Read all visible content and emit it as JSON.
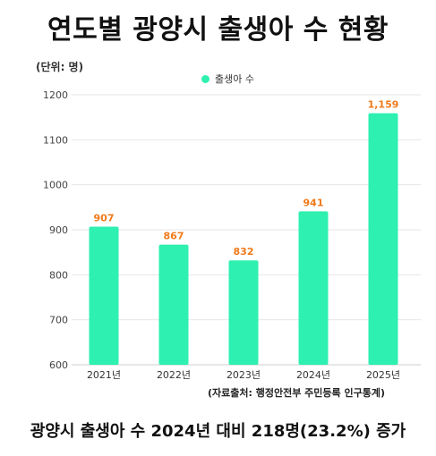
{
  "title": "연도별 광양시 출생아 수 현황",
  "unit_label": "(단위: 명)",
  "source": "(자료출처: 행정안전부 주민등록 인구통계)",
  "footer": "광양시 출생아 수 2024년 대비 218명(23.2%) 증가",
  "colors": {
    "bar": "#2ef0b0",
    "value_label": "#f07a1a",
    "grid": "#e6e6e6"
  },
  "chart_data": {
    "type": "bar",
    "categories": [
      "2021년",
      "2022년",
      "2023년",
      "2024년",
      "2025년"
    ],
    "series": [
      {
        "name": "출생아 수",
        "values": [
          907,
          867,
          832,
          941,
          1159
        ]
      }
    ],
    "value_labels": [
      "907",
      "867",
      "832",
      "941",
      "1,159"
    ],
    "ylim": [
      600,
      1200
    ],
    "yticks": [
      600,
      700,
      800,
      900,
      1000,
      1100,
      1200
    ],
    "grid": true,
    "legend_position": "top-center"
  }
}
